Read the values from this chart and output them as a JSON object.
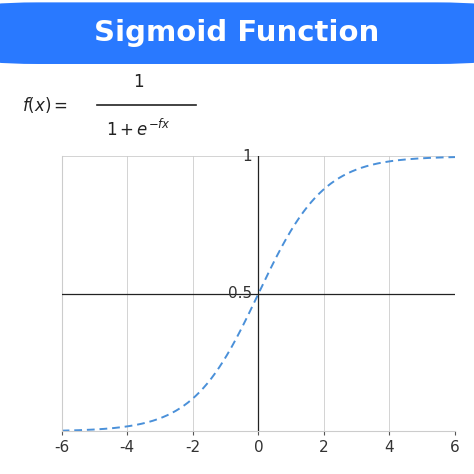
{
  "title": "Sigmoid Function",
  "title_bg_color": "#2979FF",
  "title_text_color": "#FFFFFF",
  "x_range": [
    -6,
    6
  ],
  "y_range": [
    0,
    1
  ],
  "x_ticks": [
    -6,
    -4,
    -2,
    0,
    2,
    4,
    6
  ],
  "curve_color": "#4A90D9",
  "grid_color": "#CCCCCC",
  "background_color": "#FFFFFF",
  "axis_color": "#222222",
  "line_width": 1.4,
  "title_fontsize": 21,
  "formula_fontsize": 12,
  "tick_fontsize": 11
}
